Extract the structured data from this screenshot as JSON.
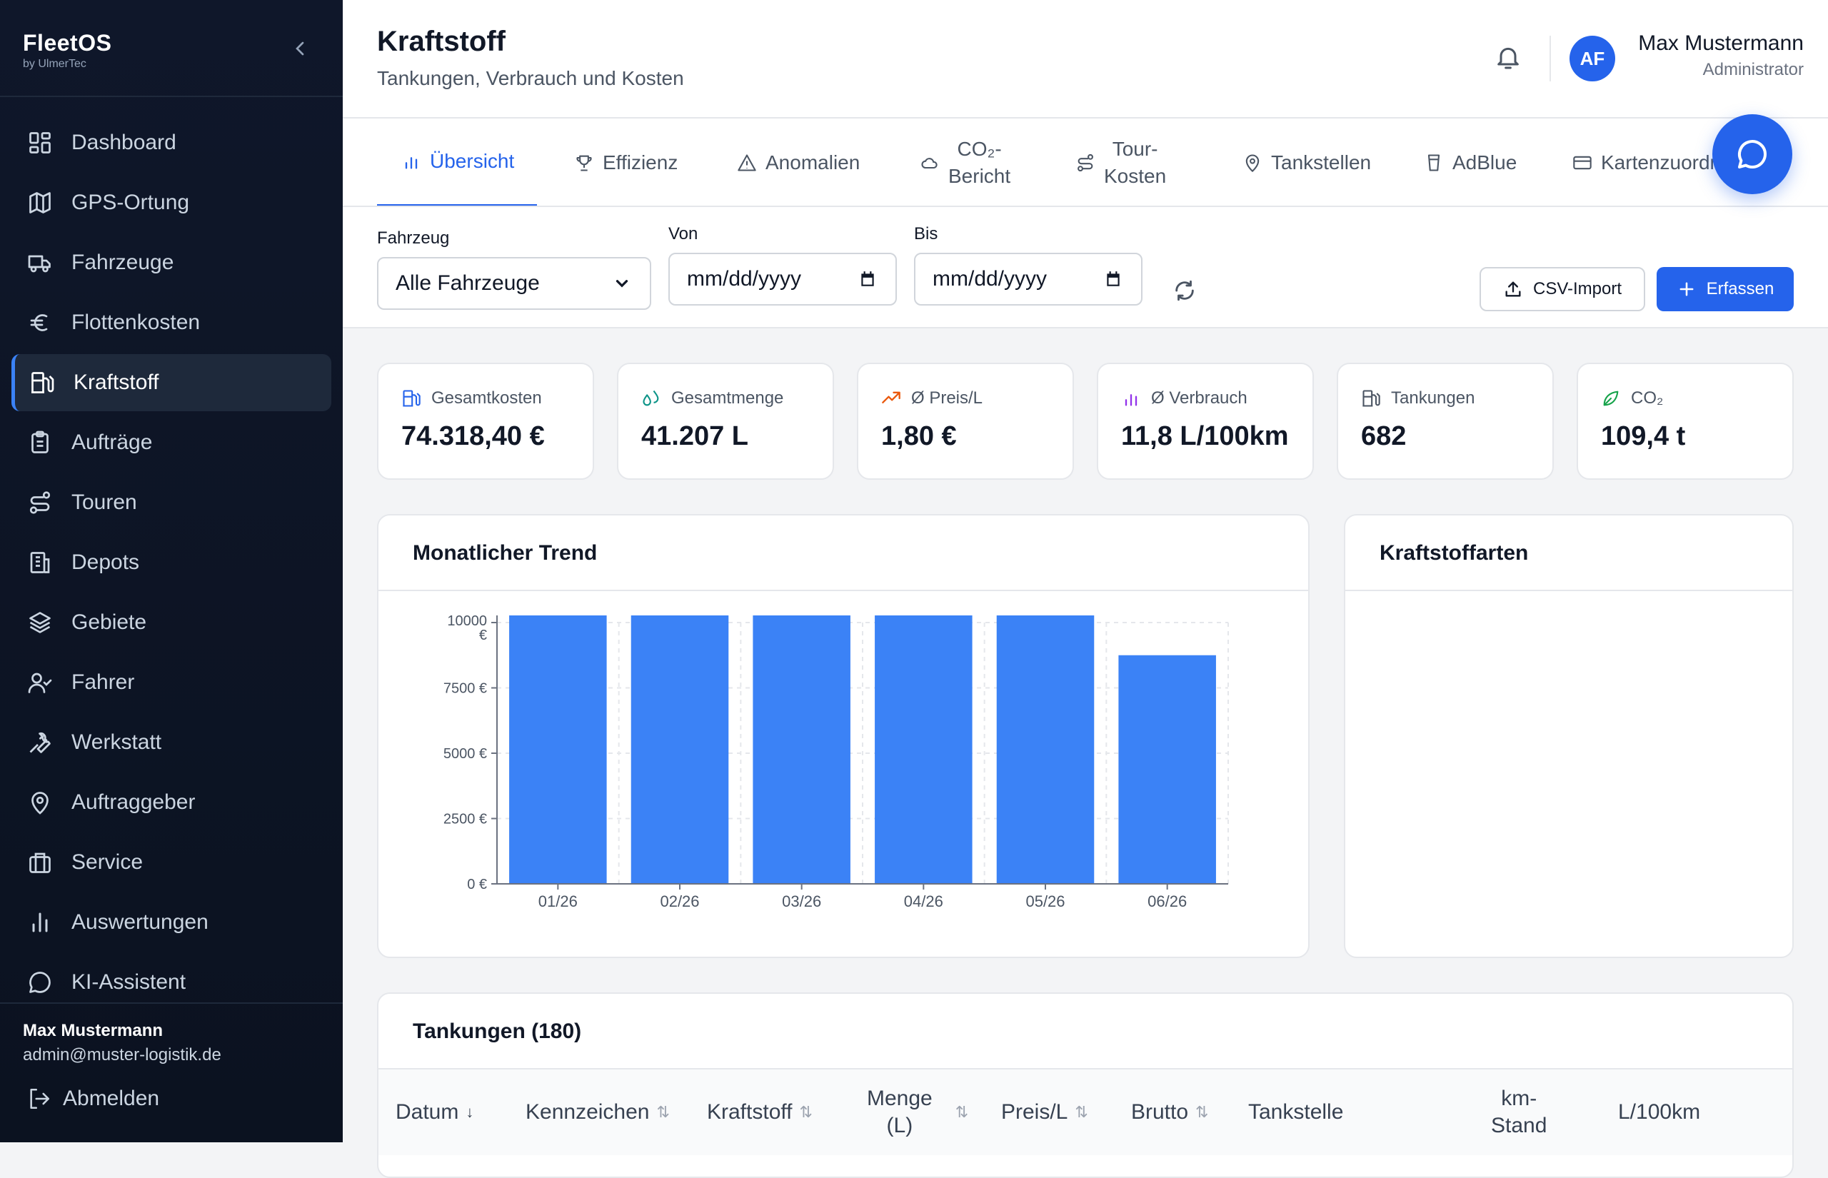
{
  "sidebar": {
    "brand_name": "FleetOS",
    "brand_sub": "by UlmerTec",
    "items": [
      {
        "label": "Dashboard",
        "icon": "dashboard-icon"
      },
      {
        "label": "GPS-Ortung",
        "icon": "map-icon"
      },
      {
        "label": "Fahrzeuge",
        "icon": "truck-icon"
      },
      {
        "label": "Flottenkosten",
        "icon": "euro-icon"
      },
      {
        "label": "Kraftstoff",
        "icon": "fuel-icon",
        "active": true
      },
      {
        "label": "Aufträge",
        "icon": "clipboard-icon"
      },
      {
        "label": "Touren",
        "icon": "route-icon"
      },
      {
        "label": "Depots",
        "icon": "building-icon"
      },
      {
        "label": "Gebiete",
        "icon": "layers-icon"
      },
      {
        "label": "Fahrer",
        "icon": "user-check-icon"
      },
      {
        "label": "Werkstatt",
        "icon": "wrench-icon"
      },
      {
        "label": "Auftraggeber",
        "icon": "map-pin-icon"
      },
      {
        "label": "Service",
        "icon": "briefcase-icon"
      },
      {
        "label": "Auswertungen",
        "icon": "bar-chart-icon"
      },
      {
        "label": "KI-Assistent",
        "icon": "message-circle-icon"
      }
    ],
    "user_name": "Max Mustermann",
    "user_email": "admin@muster-logistik.de",
    "logout_label": "Abmelden"
  },
  "header": {
    "title": "Kraftstoff",
    "subtitle": "Tankungen, Verbrauch und Kosten",
    "avatar_initials": "AF",
    "user_name": "Max Mustermann",
    "user_role": "Administrator"
  },
  "tabs": [
    {
      "label": "Übersicht",
      "icon": "bar-chart-icon",
      "active": true
    },
    {
      "label": "Effizienz",
      "icon": "trophy-icon"
    },
    {
      "label": "Anomalien",
      "icon": "alert-triangle-icon"
    },
    {
      "line1": "CO₂-",
      "line2": "Bericht",
      "icon": "cloud-icon"
    },
    {
      "line1": "Tour-",
      "line2": "Kosten",
      "icon": "route-icon"
    },
    {
      "label": "Tankstellen",
      "icon": "map-pin-icon"
    },
    {
      "label": "AdBlue",
      "icon": "cup-icon"
    },
    {
      "label": "Kartenzuordnung",
      "icon": "credit-card-icon"
    }
  ],
  "filters": {
    "vehicle_label": "Fahrzeug",
    "vehicle_value": "Alle Fahrzeuge",
    "from_label": "Von",
    "from_placeholder": "mm/dd/yyyy",
    "to_label": "Bis",
    "to_placeholder": "mm/dd/yyyy",
    "csv_label": "CSV-Import",
    "add_label": "Erfassen"
  },
  "kpis": [
    {
      "label": "Gesamtkosten",
      "value": "74.318,40 €",
      "icon": "fuel-icon",
      "color": "#2563eb"
    },
    {
      "label": "Gesamtmenge",
      "value": "41.207 L",
      "icon": "droplets-icon",
      "color": "#0d9488"
    },
    {
      "label": "Ø Preis/L",
      "value": "1,80 €",
      "icon": "trending-up-icon",
      "color": "#ea580c"
    },
    {
      "label": "Ø Verbrauch",
      "value": "11,8 L/100km",
      "icon": "bar-chart-icon",
      "color": "#9333ea"
    },
    {
      "label": "Tankungen",
      "value": "682",
      "icon": "fuel-icon",
      "color": "#4b5563"
    },
    {
      "label": "CO₂",
      "value": "109,4 t",
      "icon": "leaf-icon",
      "color": "#16a34a"
    }
  ],
  "trend": {
    "title": "Monatlicher Trend",
    "chart_data": {
      "type": "bar",
      "categories": [
        "01/26",
        "02/26",
        "03/26",
        "04/26",
        "05/26",
        "06/26"
      ],
      "values": [
        10300,
        10300,
        10300,
        10300,
        10300,
        8750
      ],
      "ylim": [
        0,
        10000
      ],
      "yticks": [
        "0 €",
        "2500 €",
        "5000 €",
        "7500 €",
        "10000 €"
      ],
      "ytick_values": [
        0,
        2500,
        5000,
        7500,
        10000
      ],
      "bar_color": "#3b82f6",
      "grid": true
    }
  },
  "fueltypes": {
    "title": "Kraftstoffarten"
  },
  "table": {
    "title": "Tankungen (180)",
    "columns": [
      {
        "label": "Datum",
        "sort": "↓",
        "active": true
      },
      {
        "label": "Kennzeichen",
        "sort": "⇅"
      },
      {
        "label": "Kraftstoff",
        "sort": "⇅"
      },
      {
        "line1": "Menge",
        "line2": "(L)",
        "sort": "⇅"
      },
      {
        "label": "Preis/L",
        "sort": "⇅"
      },
      {
        "label": "Brutto",
        "sort": "⇅"
      },
      {
        "label": "Tankstelle"
      },
      {
        "line1": "km-",
        "line2": "Stand"
      },
      {
        "label": "L/100km"
      }
    ]
  }
}
